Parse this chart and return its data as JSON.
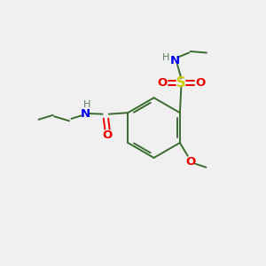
{
  "background_color": "#f0f0f0",
  "bond_color": "#3a6b30",
  "N_color": "#0000ee",
  "O_color": "#ee0000",
  "S_color": "#cccc00",
  "H_color": "#607a60",
  "figsize": [
    3.0,
    3.0
  ],
  "dpi": 100,
  "xlim": [
    0,
    10
  ],
  "ylim": [
    0,
    10
  ]
}
